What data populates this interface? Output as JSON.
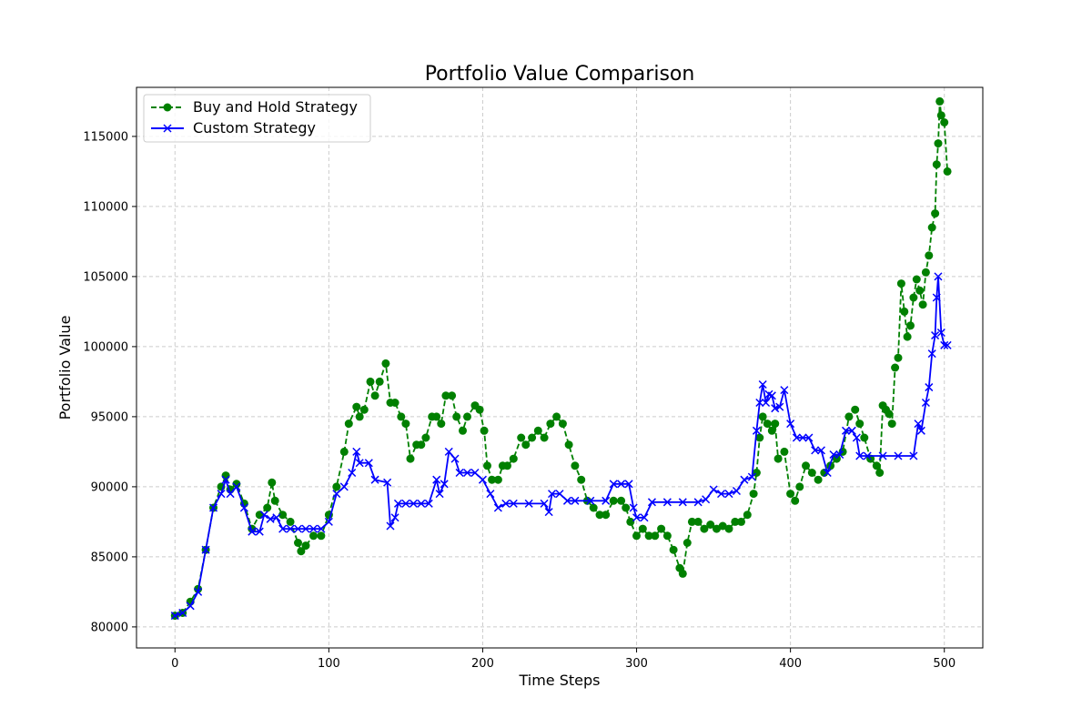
{
  "chart_data": {
    "type": "line",
    "title": "Portfolio Value Comparison",
    "xlabel": "Time Steps",
    "ylabel": "Portfolio Value",
    "xlim": [
      -25,
      525
    ],
    "ylim": [
      78500,
      118500
    ],
    "xticks": [
      0,
      100,
      200,
      300,
      400,
      500
    ],
    "yticks": [
      80000,
      85000,
      90000,
      95000,
      100000,
      105000,
      110000,
      115000
    ],
    "grid": true,
    "legend_position": "top-left",
    "series": [
      {
        "name": "Buy and Hold Strategy",
        "color": "#008000",
        "line_style": "dashed",
        "marker": "circle",
        "x": [
          0,
          5,
          10,
          15,
          20,
          25,
          30,
          33,
          36,
          40,
          45,
          50,
          55,
          60,
          63,
          65,
          70,
          75,
          80,
          82,
          85,
          90,
          95,
          100,
          105,
          110,
          113,
          118,
          120,
          123,
          127,
          130,
          133,
          137,
          140,
          143,
          147,
          150,
          153,
          157,
          160,
          163,
          167,
          170,
          173,
          176,
          180,
          183,
          187,
          190,
          195,
          198,
          201,
          203,
          206,
          210,
          213,
          216,
          220,
          225,
          228,
          232,
          236,
          240,
          244,
          248,
          252,
          256,
          260,
          264,
          268,
          272,
          276,
          280,
          285,
          290,
          293,
          296,
          300,
          304,
          308,
          312,
          316,
          320,
          324,
          328,
          330,
          333,
          336,
          340,
          344,
          348,
          352,
          356,
          360,
          364,
          368,
          372,
          376,
          378,
          380,
          382,
          385,
          388,
          390,
          392,
          396,
          400,
          403,
          406,
          410,
          414,
          418,
          422,
          426,
          430,
          434,
          438,
          442,
          445,
          448,
          452,
          456,
          458,
          460,
          462,
          464,
          466,
          468,
          470,
          472,
          474,
          476,
          478,
          480,
          482,
          484,
          486,
          488,
          490,
          492,
          494,
          495,
          496,
          497,
          498,
          500,
          502
        ],
        "y": [
          80800,
          81000,
          81800,
          82700,
          85500,
          88500,
          90000,
          90800,
          89800,
          90200,
          88800,
          87000,
          88000,
          88500,
          90300,
          89000,
          88000,
          87500,
          86000,
          85400,
          85800,
          86500,
          86500,
          88000,
          90000,
          92500,
          94500,
          95700,
          95000,
          95500,
          97500,
          96500,
          97500,
          98800,
          96000,
          96000,
          95000,
          94500,
          92000,
          93000,
          93000,
          93500,
          95000,
          95000,
          94500,
          96500,
          96500,
          95000,
          94000,
          95000,
          95800,
          95500,
          94000,
          91500,
          90500,
          90500,
          91500,
          91500,
          92000,
          93500,
          93000,
          93500,
          94000,
          93500,
          94500,
          95000,
          94500,
          93000,
          91500,
          90500,
          89000,
          88500,
          88000,
          88000,
          89000,
          89000,
          88500,
          87500,
          86500,
          87000,
          86500,
          86500,
          87000,
          86500,
          85500,
          84200,
          83800,
          86000,
          87500,
          87500,
          87000,
          87300,
          87000,
          87200,
          87000,
          87500,
          87500,
          88000,
          89500,
          91000,
          93500,
          95000,
          94500,
          94000,
          94500,
          92000,
          92500,
          89500,
          89000,
          90000,
          91500,
          91000,
          90500,
          91000,
          91500,
          92000,
          92500,
          95000,
          95500,
          94500,
          93500,
          92000,
          91500,
          91000,
          95800,
          95500,
          95200,
          94500,
          98500,
          99200,
          104500,
          102500,
          100700,
          101500,
          103500,
          104800,
          104000,
          103000,
          105300,
          106500,
          108500,
          109500,
          113000,
          114500,
          117500,
          116500,
          116000,
          112500
        ]
      },
      {
        "name": "Custom Strategy",
        "color": "#0000ff",
        "line_style": "solid",
        "marker": "x",
        "x": [
          0,
          5,
          10,
          15,
          20,
          25,
          30,
          33,
          36,
          40,
          45,
          50,
          55,
          58,
          62,
          66,
          70,
          75,
          80,
          85,
          90,
          95,
          100,
          105,
          110,
          115,
          118,
          120,
          126,
          130,
          138,
          140,
          143,
          145,
          150,
          155,
          160,
          165,
          170,
          172,
          175,
          178,
          182,
          185,
          190,
          195,
          200,
          205,
          210,
          215,
          220,
          230,
          240,
          243,
          245,
          250,
          255,
          260,
          270,
          280,
          285,
          290,
          295,
          298,
          300,
          305,
          310,
          320,
          330,
          340,
          345,
          350,
          355,
          360,
          365,
          370,
          375,
          378,
          380,
          382,
          384,
          386,
          388,
          390,
          393,
          396,
          400,
          404,
          408,
          412,
          416,
          420,
          424,
          428,
          432,
          436,
          440,
          443,
          445,
          450,
          460,
          470,
          480,
          483,
          485,
          488,
          490,
          492,
          494,
          495,
          496,
          498,
          500,
          502
        ],
        "y": [
          80800,
          81000,
          81500,
          82500,
          85500,
          88500,
          89500,
          90500,
          89500,
          90000,
          88500,
          86800,
          86800,
          88000,
          87700,
          87800,
          87000,
          87000,
          87000,
          87000,
          87000,
          87000,
          87500,
          89500,
          90000,
          91000,
          92500,
          91700,
          91700,
          90500,
          90300,
          87200,
          87800,
          88800,
          88800,
          88800,
          88800,
          88800,
          90500,
          89500,
          90200,
          92500,
          92000,
          91000,
          91000,
          91000,
          90500,
          89500,
          88500,
          88800,
          88800,
          88800,
          88800,
          88200,
          89500,
          89500,
          89000,
          89000,
          89000,
          89000,
          90200,
          90200,
          90200,
          88500,
          87800,
          87800,
          88900,
          88900,
          88900,
          88900,
          89100,
          89800,
          89500,
          89500,
          89700,
          90500,
          90700,
          94000,
          96000,
          97300,
          96000,
          96600,
          96500,
          95600,
          95700,
          96900,
          94500,
          93500,
          93500,
          93500,
          92600,
          92600,
          91000,
          92300,
          92300,
          94000,
          94000,
          93500,
          92200,
          92200,
          92200,
          92200,
          92200,
          94500,
          94000,
          96000,
          97100,
          99500,
          100800,
          103500,
          105000,
          101000,
          100100,
          100100
        ]
      }
    ]
  }
}
